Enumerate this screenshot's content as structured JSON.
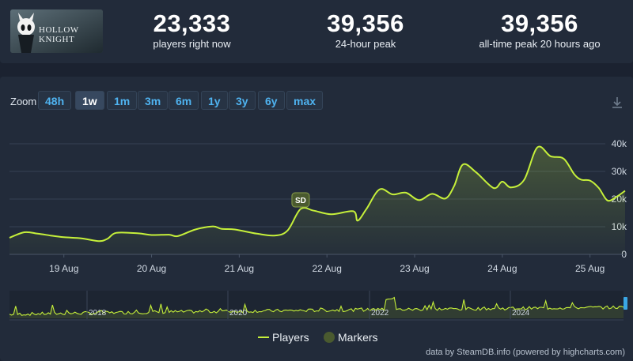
{
  "game": {
    "title": "HOLLOW KNIGHT"
  },
  "stats": [
    {
      "value": "23,333",
      "label": "players right now"
    },
    {
      "value": "39,356",
      "label": "24-hour peak"
    },
    {
      "value": "39,356",
      "label": "all-time peak 20 hours ago"
    }
  ],
  "zoom": {
    "label": "Zoom",
    "options": [
      "48h",
      "1w",
      "1m",
      "3m",
      "6m",
      "1y",
      "3y",
      "6y",
      "max"
    ],
    "active": "1w"
  },
  "colors": {
    "series": "#c6f03a",
    "marker": "#4a5a2f",
    "grid": "#364254",
    "panel": "#222b3a"
  },
  "chart_data": {
    "type": "line",
    "title": "",
    "xlabel": "",
    "ylabel": "",
    "ylim": [
      0,
      40000
    ],
    "y_ticks": [
      0,
      10000,
      20000,
      30000,
      40000
    ],
    "y_tick_labels": [
      "0",
      "10k",
      "20k",
      "30k",
      "40k"
    ],
    "x_tick_labels": [
      "19 Aug",
      "20 Aug",
      "21 Aug",
      "22 Aug",
      "23 Aug",
      "24 Aug",
      "25 Aug"
    ],
    "x_tick_days": [
      18,
      19,
      20,
      21,
      22,
      23,
      24
    ],
    "x_range_days": [
      17.38,
      24.4
    ],
    "series": [
      {
        "name": "Players",
        "x_days": [
          17.38,
          17.55,
          17.7,
          17.85,
          18.0,
          18.2,
          18.4,
          18.5,
          18.6,
          18.85,
          19.0,
          19.2,
          19.3,
          19.5,
          19.7,
          19.8,
          19.95,
          20.2,
          20.4,
          20.55,
          20.7,
          20.85,
          21.05,
          21.3,
          21.35,
          21.45,
          21.6,
          21.75,
          21.9,
          22.05,
          22.2,
          22.35,
          22.45,
          22.55,
          22.7,
          22.9,
          23.0,
          23.1,
          23.25,
          23.4,
          23.55,
          23.7,
          23.82,
          23.9,
          24.0,
          24.1,
          24.2,
          24.3,
          24.4
        ],
        "values": [
          6000,
          8000,
          7500,
          6800,
          6200,
          5800,
          4800,
          5700,
          7800,
          7600,
          7000,
          7100,
          6600,
          9000,
          10100,
          9200,
          9000,
          7500,
          6800,
          8600,
          16400,
          15800,
          14500,
          15600,
          12200,
          16400,
          23500,
          21700,
          22300,
          19600,
          21900,
          20200,
          24700,
          32500,
          29700,
          24000,
          26300,
          24200,
          27000,
          38700,
          35500,
          34600,
          29000,
          27000,
          26700,
          24000,
          19500,
          20800,
          23000
        ]
      }
    ],
    "markers": [
      {
        "label": "SD",
        "x_day": 20.7
      }
    ],
    "navigator": {
      "labels": [
        "2018",
        "2020",
        "2022",
        "2024"
      ]
    },
    "legend": [
      {
        "name": "Players"
      },
      {
        "name": "Markers"
      }
    ],
    "legend_position": "bottom",
    "grid": true
  },
  "credit": "data by SteamDB.info (powered by highcharts.com)"
}
